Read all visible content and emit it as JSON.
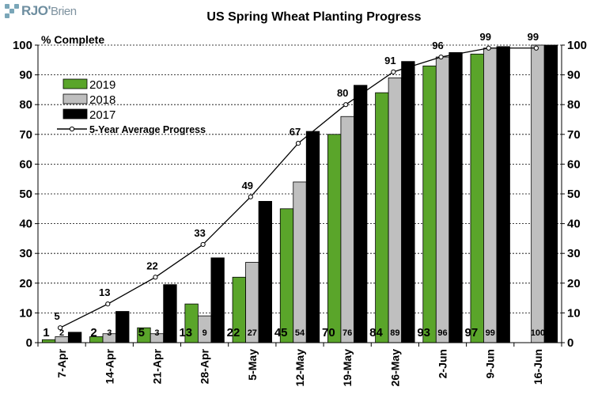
{
  "logo": {
    "name_bold": "RJO",
    "name_light": "Brien",
    "separator": "'"
  },
  "chart_data": {
    "type": "bar",
    "title": "US Spring Wheat Planting Progress",
    "ylabel": "% Complete",
    "ylim": [
      0,
      100
    ],
    "yticks": [
      0,
      10,
      20,
      30,
      40,
      50,
      60,
      70,
      80,
      90,
      100
    ],
    "categories": [
      "7-Apr",
      "14-Apr",
      "21-Apr",
      "28-Apr",
      "5-May",
      "12-May",
      "19-May",
      "26-May",
      "2-Jun",
      "9-Jun",
      "16-Jun"
    ],
    "series": [
      {
        "name": "2019",
        "color": "#5aa52a",
        "values": [
          1,
          2,
          5,
          13,
          22,
          45,
          70,
          84,
          93,
          97,
          null
        ],
        "labels": [
          "1",
          "2",
          "5",
          "13",
          "22",
          "45",
          "70",
          "84",
          "93",
          "97",
          ""
        ]
      },
      {
        "name": "2018",
        "color": "#bfbfbf",
        "values": [
          2,
          3,
          3,
          9,
          27,
          54,
          76,
          89,
          96,
          99,
          100
        ],
        "labels": [
          "2",
          "3",
          "3",
          "9",
          "27",
          "54",
          "76",
          "89",
          "96",
          "99",
          "100"
        ]
      },
      {
        "name": "2017",
        "color": "#000000",
        "values": [
          3.5,
          10.5,
          19.5,
          28.5,
          47.5,
          71,
          86.5,
          94.5,
          97.5,
          99.5,
          100
        ],
        "labels": []
      }
    ],
    "line": {
      "name": "5-Year Average Progress",
      "values": [
        5,
        13,
        22,
        33,
        49,
        67,
        80,
        91,
        96,
        99,
        99
      ],
      "labels": [
        "5",
        "13",
        "22",
        "33",
        "49",
        "67",
        "80",
        "91",
        "96",
        "99",
        "99"
      ]
    },
    "legend_position": "upper-left",
    "grid": "dashed-horizontal"
  }
}
